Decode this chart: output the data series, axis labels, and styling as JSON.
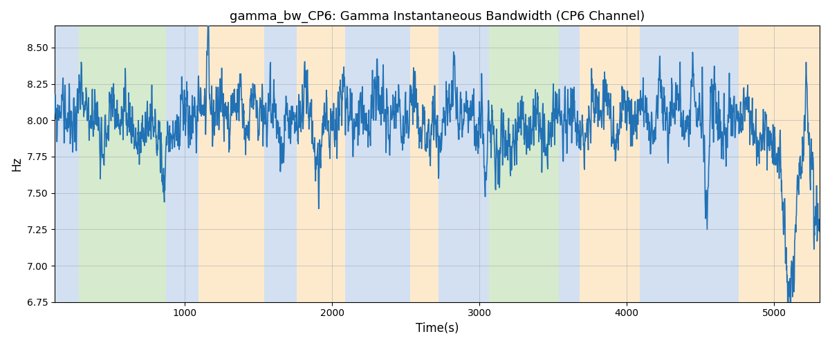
{
  "title": "gamma_bw_CP6: Gamma Instantaneous Bandwidth (CP6 Channel)",
  "xlabel": "Time(s)",
  "ylabel": "Hz",
  "ylim": [
    6.75,
    8.65
  ],
  "xlim": [
    115,
    5310
  ],
  "line_color": "#2171b5",
  "line_width": 1.2,
  "bands": [
    {
      "xmin": 115,
      "xmax": 280,
      "color": "#aec7e8",
      "alpha": 0.55
    },
    {
      "xmin": 280,
      "xmax": 870,
      "color": "#b5d9a5",
      "alpha": 0.55
    },
    {
      "xmin": 870,
      "xmax": 1090,
      "color": "#aec7e8",
      "alpha": 0.55
    },
    {
      "xmin": 1090,
      "xmax": 1540,
      "color": "#fdd9a5",
      "alpha": 0.55
    },
    {
      "xmin": 1540,
      "xmax": 1760,
      "color": "#aec7e8",
      "alpha": 0.55
    },
    {
      "xmin": 1760,
      "xmax": 2090,
      "color": "#fdd9a5",
      "alpha": 0.55
    },
    {
      "xmin": 2090,
      "xmax": 2530,
      "color": "#aec7e8",
      "alpha": 0.55
    },
    {
      "xmin": 2530,
      "xmax": 2720,
      "color": "#fdd9a5",
      "alpha": 0.55
    },
    {
      "xmin": 2720,
      "xmax": 2780,
      "color": "#aec7e8",
      "alpha": 0.55
    },
    {
      "xmin": 2780,
      "xmax": 2960,
      "color": "#aec7e8",
      "alpha": 0.55
    },
    {
      "xmin": 2960,
      "xmax": 3065,
      "color": "#aec7e8",
      "alpha": 0.55
    },
    {
      "xmin": 3065,
      "xmax": 3540,
      "color": "#b5d9a5",
      "alpha": 0.55
    },
    {
      "xmin": 3540,
      "xmax": 3680,
      "color": "#aec7e8",
      "alpha": 0.55
    },
    {
      "xmin": 3680,
      "xmax": 4090,
      "color": "#fdd9a5",
      "alpha": 0.55
    },
    {
      "xmin": 4090,
      "xmax": 4760,
      "color": "#aec7e8",
      "alpha": 0.55
    },
    {
      "xmin": 4760,
      "xmax": 5310,
      "color": "#fdd9a5",
      "alpha": 0.55
    }
  ],
  "figsize": [
    12.0,
    5.0
  ],
  "dpi": 100,
  "yticks": [
    6.75,
    7.0,
    7.25,
    7.5,
    7.75,
    8.0,
    8.25,
    8.5
  ],
  "xticks": [
    1000,
    2000,
    3000,
    4000,
    5000
  ]
}
